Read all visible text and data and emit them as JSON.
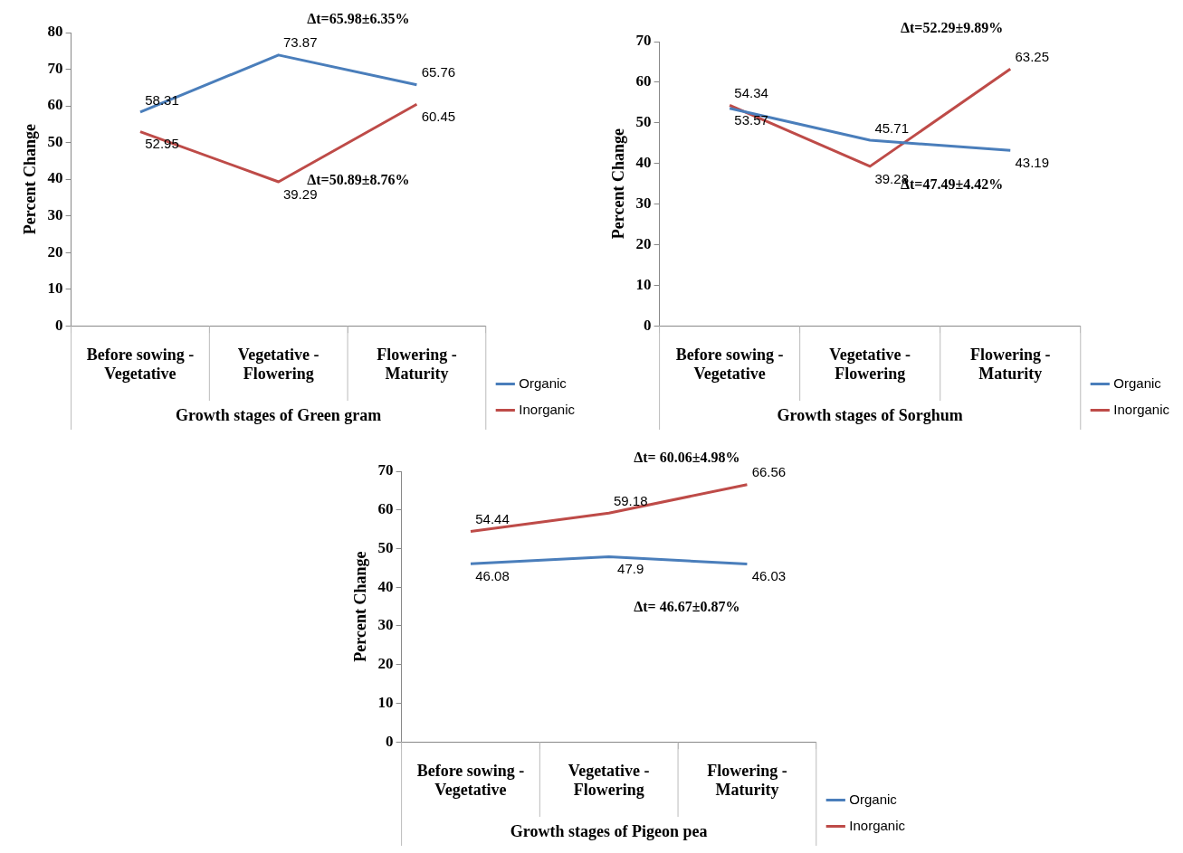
{
  "chart_data": [
    {
      "type": "line",
      "xlabel": "Growth stages of Green gram",
      "ylabel": "Percent Change",
      "categories": [
        "Before sowing - Vegetative",
        "Vegetative - Flowering",
        "Flowering - Maturity"
      ],
      "series": [
        {
          "name": "Organic",
          "color": "#4a7ebb",
          "values": [
            58.31,
            73.87,
            65.76
          ]
        },
        {
          "name": "Inorganic",
          "color": "#be4b48",
          "values": [
            52.95,
            39.29,
            60.45
          ]
        }
      ],
      "ylim": [
        0,
        80
      ],
      "yticks": [
        0,
        10,
        20,
        30,
        40,
        50,
        60,
        70,
        80
      ],
      "grid": false,
      "legend": "right",
      "marker": "none",
      "data_labels": true,
      "annotations": [
        "Δt=65.98±6.35%",
        "Δt=50.89±8.76%"
      ]
    },
    {
      "type": "line",
      "xlabel": "Growth stages of Sorghum",
      "ylabel": "Percent Change",
      "categories": [
        "Before sowing - Vegetative",
        "Vegetative - Flowering",
        "Flowering - Maturity"
      ],
      "series": [
        {
          "name": "Organic",
          "color": "#4a7ebb",
          "values": [
            53.57,
            45.71,
            43.19
          ]
        },
        {
          "name": "Inorganic",
          "color": "#be4b48",
          "values": [
            54.34,
            39.28,
            63.25
          ]
        }
      ],
      "ylim": [
        0,
        70
      ],
      "yticks": [
        0,
        10,
        20,
        30,
        40,
        50,
        60,
        70
      ],
      "grid": false,
      "legend": "right",
      "marker": "none",
      "data_labels": true,
      "annotations": [
        "Δt=52.29±9.89%",
        "Δt=47.49±4.42%"
      ]
    },
    {
      "type": "line",
      "xlabel": "Growth stages of Pigeon pea",
      "ylabel": "Percent Change",
      "categories": [
        "Before sowing - Vegetative",
        "Vegetative - Flowering",
        "Flowering - Maturity"
      ],
      "series": [
        {
          "name": "Organic",
          "color": "#4a7ebb",
          "values": [
            46.08,
            47.9,
            46.03
          ]
        },
        {
          "name": "Inorganic",
          "color": "#be4b48",
          "values": [
            54.44,
            59.18,
            66.56
          ]
        }
      ],
      "ylim": [
        0,
        70
      ],
      "yticks": [
        0,
        10,
        20,
        30,
        40,
        50,
        60,
        70
      ],
      "grid": false,
      "legend": "right",
      "marker": "none",
      "data_labels": true,
      "annotations": [
        "Δt= 60.06±4.98%",
        "Δt= 46.67±0.87%"
      ]
    }
  ]
}
